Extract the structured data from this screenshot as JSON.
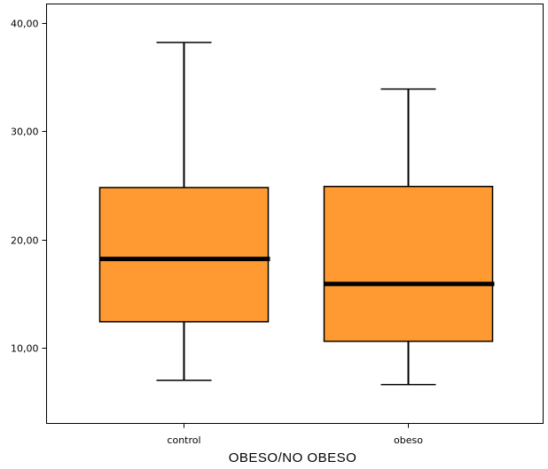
{
  "chart_data": {
    "type": "box",
    "title": "",
    "xlabel": "OBESO/NO OBESO",
    "ylabel": "",
    "ylim": [
      3.5,
      42
    ],
    "y_ticks": [
      10,
      20,
      30,
      40
    ],
    "y_tick_labels": [
      "10,00",
      "20,00",
      "30,00",
      "40,00"
    ],
    "grid": false,
    "categories": [
      "control",
      "obeso"
    ],
    "boxes": [
      {
        "category": "control",
        "whisker_low": 7.0,
        "q1": 12.4,
        "median": 18.2,
        "q3": 24.8,
        "whisker_high": 38.2
      },
      {
        "category": "obeso",
        "whisker_low": 6.6,
        "q1": 10.6,
        "median": 15.9,
        "q3": 24.9,
        "whisker_high": 33.9
      }
    ],
    "box_color": "#FF9A33",
    "line_color": "#000000"
  }
}
